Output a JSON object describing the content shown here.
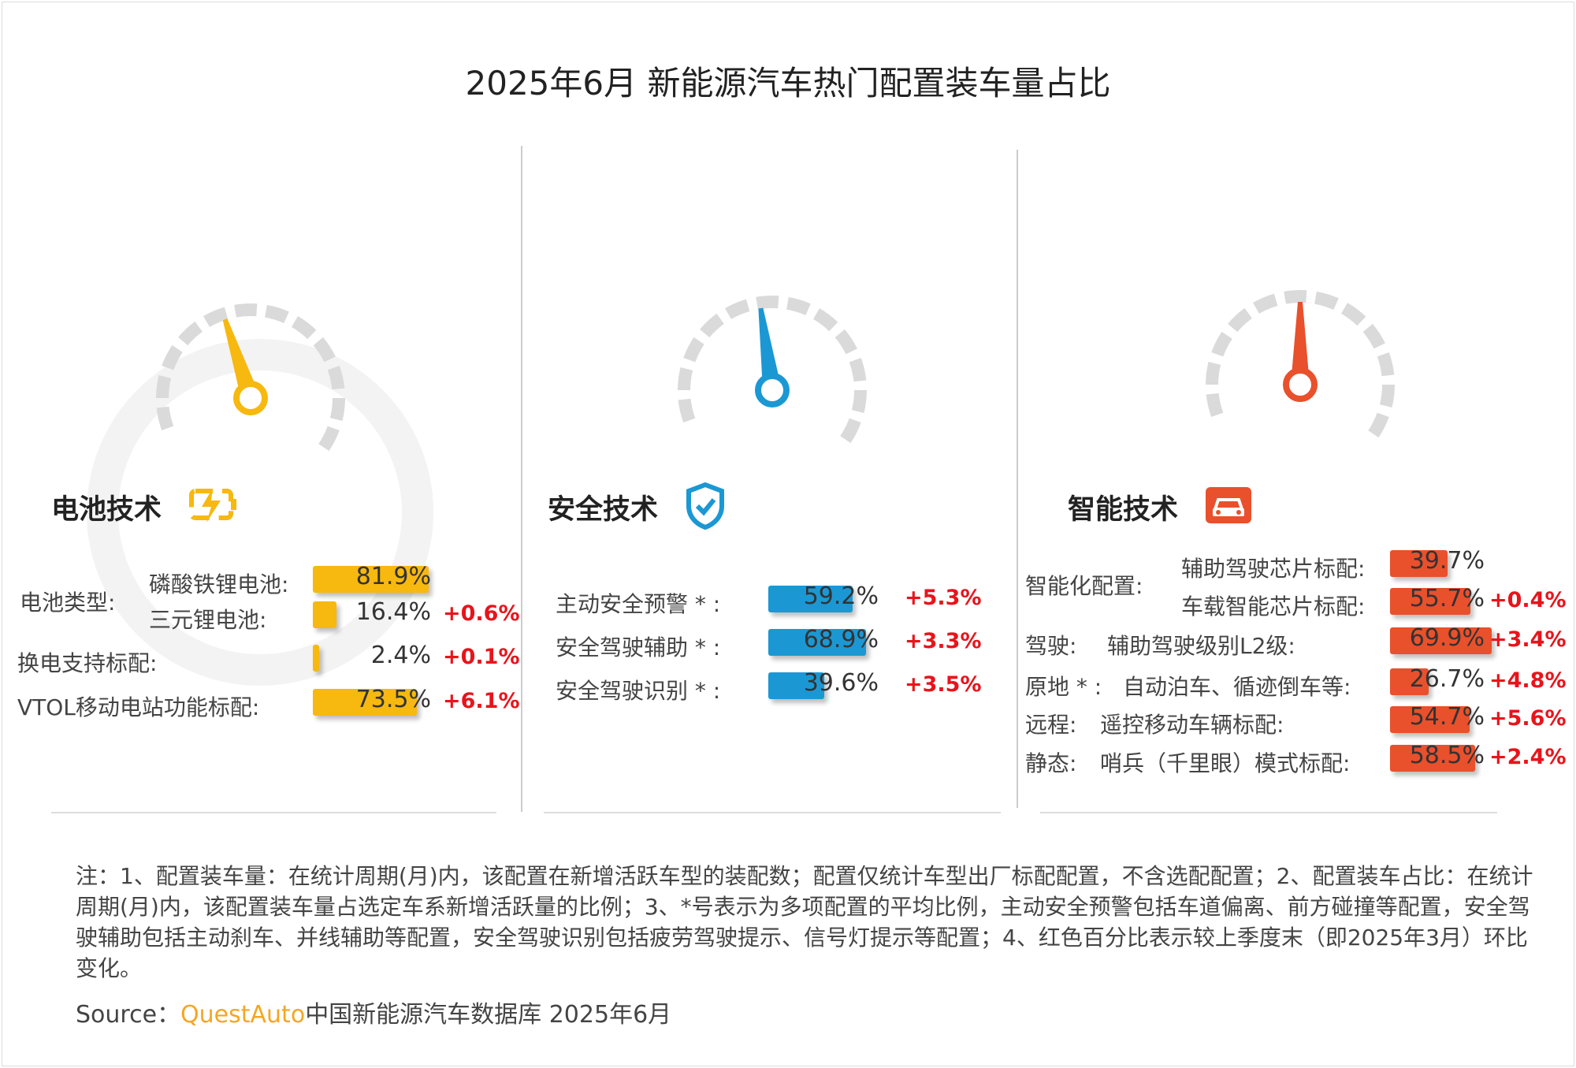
{
  "title": "2025年6月 新能源汽车热门配置装车量占比",
  "watermark": "QUEST AUTO",
  "colors": {
    "battery": "#f7b80f",
    "safety": "#1b98d4",
    "smart": "#e9502c",
    "delta": "#e8141b",
    "gauge_track": "#dadada"
  },
  "chart_data": {
    "type": "bar",
    "unit": "%",
    "panels": [
      {
        "title": "电池技术",
        "icon": "battery-bolt-icon",
        "rows": [
          {
            "group": "电池类型:",
            "label": "磷酸铁锂电池:",
            "value": 81.9,
            "value_label": "81.9%",
            "delta": ""
          },
          {
            "group": "",
            "label": "三元锂电池:",
            "value": 16.4,
            "value_label": "16.4%",
            "delta": "+0.6%"
          },
          {
            "group": "",
            "label": "换电支持标配:",
            "value": 2.4,
            "value_label": "2.4%",
            "delta": "+0.1%"
          },
          {
            "group": "",
            "label": "VTOL移动电站功能标配:",
            "value": 73.5,
            "value_label": "73.5%",
            "delta": "+6.1%"
          }
        ]
      },
      {
        "title": "安全技术",
        "icon": "shield-check-icon",
        "rows": [
          {
            "label": "主动安全预警 * :",
            "value": 59.2,
            "value_label": "59.2%",
            "delta": "+5.3%"
          },
          {
            "label": "安全驾驶辅助 * :",
            "value": 68.9,
            "value_label": "68.9%",
            "delta": "+3.3%"
          },
          {
            "label": "安全驾驶识别 * :",
            "value": 39.6,
            "value_label": "39.6%",
            "delta": "+3.5%"
          }
        ]
      },
      {
        "title": "智能技术",
        "icon": "car-icon",
        "rows": [
          {
            "group": "智能化配置:",
            "label": "辅助驾驶芯片标配:",
            "value": 39.7,
            "value_label": "39.7%",
            "delta": ""
          },
          {
            "group": "",
            "label": "车载智能芯片标配:",
            "value": 55.7,
            "value_label": "55.7%",
            "delta": "+0.4%"
          },
          {
            "group": "驾驶:",
            "label": "辅助驾驶级别L2级:",
            "value": 69.9,
            "value_label": "69.9%",
            "delta": "+3.4%"
          },
          {
            "group": "原地 * :",
            "label": "自动泊车、循迹倒车等:",
            "value": 26.7,
            "value_label": "26.7%",
            "delta": "+4.8%"
          },
          {
            "group": "远程:",
            "label": "遥控移动车辆标配:",
            "value": 54.7,
            "value_label": "54.7%",
            "delta": "+5.6%"
          },
          {
            "group": "静态:",
            "label": "哨兵（千里眼）模式标配:",
            "value": 58.5,
            "value_label": "58.5%",
            "delta": "+2.4%"
          }
        ]
      }
    ]
  },
  "note": "注：1、配置装车量：在统计周期(月)内，该配置在新增活跃车型的装配数；配置仅统计车型出厂标配配置，不含选配配置；2、配置装车占比：在统计周期(月)内，该配置装车量占选定车系新增活跃量的比例；3、*号表示为多项配置的平均比例，主动安全预警包括车道偏离、前方碰撞等配置，安全驾驶辅助包括主动刹车、并线辅助等配置，安全驾驶识别包括疲劳驾驶提示、信号灯提示等配置；4、红色百分比表示较上季度末（即2025年3月）环比变化。",
  "source": {
    "prefix": "Source：",
    "brand": "QuestAuto",
    "text": "中国新能源汽车数据库 2025年6月"
  }
}
